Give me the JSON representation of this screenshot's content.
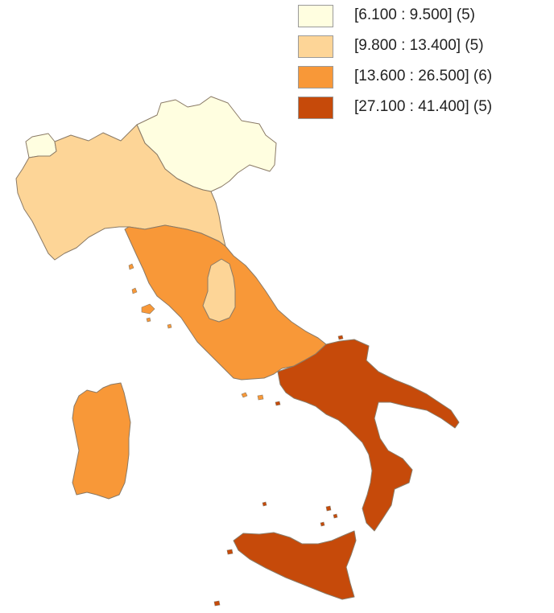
{
  "legend": {
    "items": [
      {
        "label": "[6.100 : 9.500] (5)",
        "color": "#FFFEE0"
      },
      {
        "label": "[9.800 : 13.400] (5)",
        "color": "#FDD597"
      },
      {
        "label": "[13.600 : 26.500] (6)",
        "color": "#F89838"
      },
      {
        "label": "[27.100 : 41.400] (5)",
        "color": "#C64A0A"
      }
    ]
  },
  "map": {
    "regions": [
      {
        "name": "north-east",
        "class": 0
      },
      {
        "name": "north-west",
        "class": 1
      },
      {
        "name": "center",
        "class": 2
      },
      {
        "name": "umbria",
        "class": 1
      },
      {
        "name": "sardinia",
        "class": 2
      },
      {
        "name": "south",
        "class": 3
      },
      {
        "name": "sicily",
        "class": 3
      }
    ],
    "stroke_color": "#8a7a66"
  }
}
